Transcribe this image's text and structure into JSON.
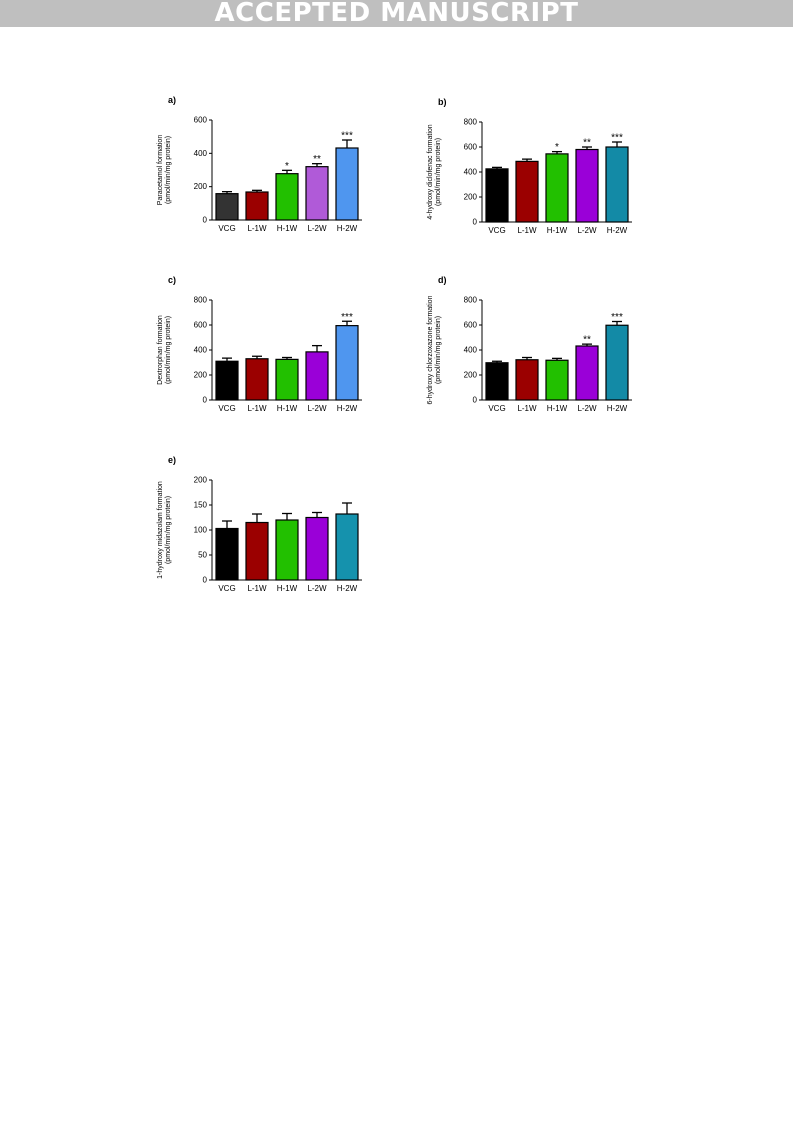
{
  "banner": "ACCEPTED MANUSCRIPT",
  "chart_data": [
    {
      "type": "bar",
      "panel_label": "a)",
      "title": "",
      "ylabel_lines": [
        "Paracetamol formation",
        "(pmol/min/mg protein)"
      ],
      "xlabel": "",
      "categories": [
        "VCG",
        "L-1W",
        "H-1W",
        "L-2W",
        "H-2W"
      ],
      "values": [
        158,
        168,
        278,
        320,
        432
      ],
      "errors": [
        12,
        10,
        20,
        18,
        48
      ],
      "significance": [
        "",
        "",
        "*",
        "**",
        "***"
      ],
      "colors": [
        "#333333",
        "#9b0000",
        "#22c000",
        "#b05ad8",
        "#4f96ef"
      ],
      "ylim": [
        0,
        600
      ],
      "yticks": [
        0,
        200,
        400,
        600
      ]
    },
    {
      "type": "bar",
      "panel_label": "b)",
      "title": "",
      "ylabel_lines": [
        "4-hydroxy diclofenac formation",
        "(pmol/min/mg protein)"
      ],
      "xlabel": "",
      "categories": [
        "VCG",
        "L-1W",
        "H-1W",
        "L-2W",
        "H-2W"
      ],
      "values": [
        425,
        485,
        545,
        580,
        600
      ],
      "errors": [
        12,
        18,
        18,
        20,
        40
      ],
      "significance": [
        "",
        "",
        "*",
        "**",
        "***"
      ],
      "colors": [
        "#000000",
        "#9b0000",
        "#22c000",
        "#9a00d8",
        "#138aa6"
      ],
      "ylim": [
        0,
        800
      ],
      "yticks": [
        0,
        200,
        400,
        600,
        800
      ]
    },
    {
      "type": "bar",
      "panel_label": "c)",
      "title": "",
      "ylabel_lines": [
        "Dextrorphan formation",
        "(pmol/min/mg protein)"
      ],
      "xlabel": "",
      "categories": [
        "VCG",
        "L-1W",
        "H-1W",
        "L-2W",
        "H-2W"
      ],
      "values": [
        310,
        330,
        325,
        385,
        595
      ],
      "errors": [
        25,
        20,
        15,
        50,
        35
      ],
      "significance": [
        "",
        "",
        "",
        "",
        "***"
      ],
      "colors": [
        "#000000",
        "#9b0000",
        "#22c000",
        "#9a00d8",
        "#4f96ef"
      ],
      "ylim": [
        0,
        800
      ],
      "yticks": [
        0,
        200,
        400,
        600,
        800
      ]
    },
    {
      "type": "bar",
      "panel_label": "d)",
      "title": "",
      "ylabel_lines": [
        "6-hydroxy chlorzoxazone formation",
        "(pmol/min/mg protein)"
      ],
      "xlabel": "",
      "categories": [
        "VCG",
        "L-1W",
        "H-1W",
        "L-2W",
        "H-2W"
      ],
      "values": [
        298,
        322,
        318,
        432,
        598
      ],
      "errors": [
        12,
        18,
        15,
        15,
        30
      ],
      "significance": [
        "",
        "",
        "",
        "**",
        "***"
      ],
      "colors": [
        "#000000",
        "#9b0000",
        "#22c000",
        "#9a00d8",
        "#138aa6"
      ],
      "ylim": [
        0,
        800
      ],
      "yticks": [
        0,
        200,
        400,
        600,
        800
      ]
    },
    {
      "type": "bar",
      "panel_label": "e)",
      "title": "",
      "ylabel_lines": [
        "1-hydroxy midazolam formation",
        "(pmol/min/mg protein)"
      ],
      "xlabel": "",
      "categories": [
        "VCG",
        "L-1W",
        "H-1W",
        "L-2W",
        "H-2W"
      ],
      "values": [
        103,
        115,
        120,
        125,
        132
      ],
      "errors": [
        15,
        17,
        13,
        10,
        22
      ],
      "significance": [
        "",
        "",
        "",
        "",
        ""
      ],
      "colors": [
        "#000000",
        "#9b0000",
        "#22c000",
        "#9a00d8",
        "#1592ad"
      ],
      "ylim": [
        0,
        200
      ],
      "yticks": [
        0,
        50,
        100,
        150,
        200
      ]
    }
  ]
}
